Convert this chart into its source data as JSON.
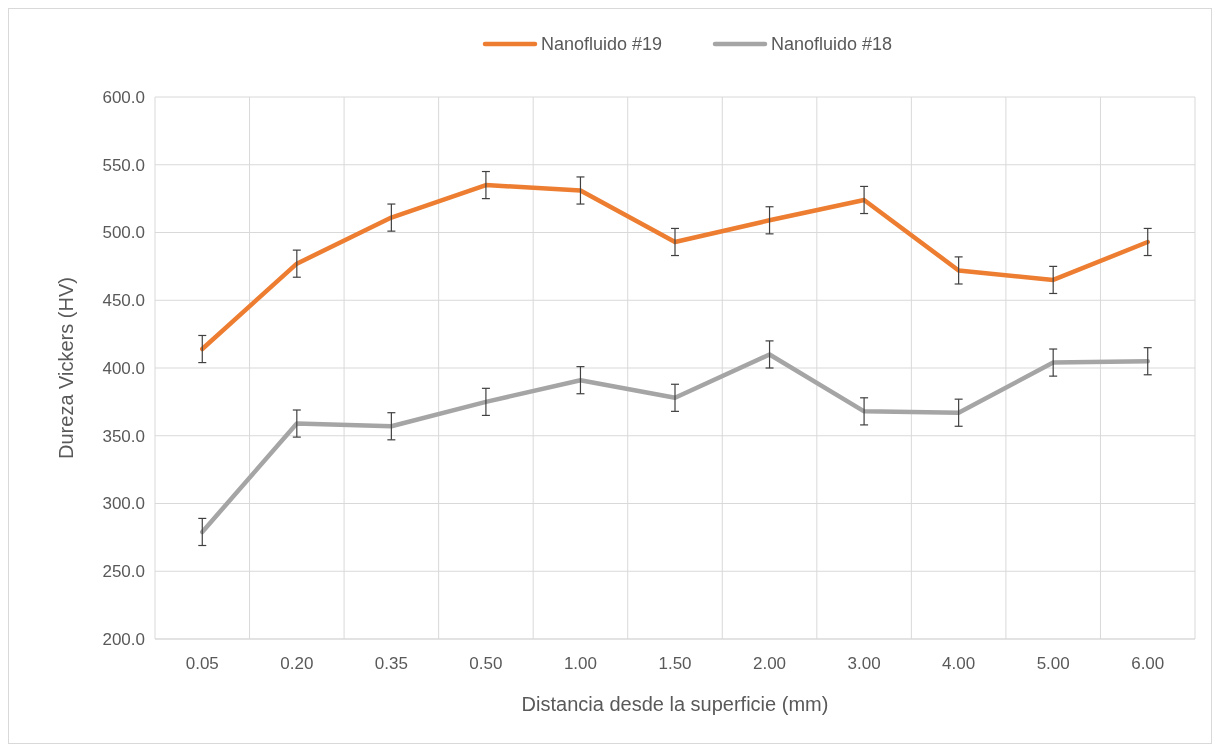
{
  "chart_data": {
    "type": "line",
    "xlabel": "Distancia desde la superficie (mm)",
    "ylabel": "Dureza Vickers (HV)",
    "categories": [
      "0.05",
      "0.20",
      "0.35",
      "0.50",
      "1.00",
      "1.50",
      "2.00",
      "3.00",
      "4.00",
      "5.00",
      "6.00"
    ],
    "series": [
      {
        "name": "Nanofluido #19",
        "color": "#ed7d31",
        "values": [
          414,
          477,
          511,
          535,
          531,
          493,
          509,
          524,
          472,
          465,
          493
        ],
        "errors": [
          10,
          10,
          10,
          10,
          10,
          10,
          10,
          10,
          10,
          10,
          10
        ]
      },
      {
        "name": "Nanofluido #18",
        "color": "#a5a5a5",
        "values": [
          279,
          359,
          357,
          375,
          391,
          378,
          410,
          368,
          367,
          404,
          405
        ],
        "errors": [
          10,
          10,
          10,
          10,
          10,
          10,
          10,
          10,
          10,
          10,
          10
        ]
      }
    ],
    "ylim": [
      200,
      600
    ],
    "yticks": [
      {
        "value": 200,
        "label": "200.0"
      },
      {
        "value": 250,
        "label": "250.0"
      },
      {
        "value": 300,
        "label": "300.0"
      },
      {
        "value": 350,
        "label": "350.0"
      },
      {
        "value": 400,
        "label": "400.0"
      },
      {
        "value": 450,
        "label": "450.0"
      },
      {
        "value": 500,
        "label": "500.0"
      },
      {
        "value": 550,
        "label": "550.0"
      },
      {
        "value": 600,
        "label": "600.0"
      }
    ],
    "grid": true,
    "legend": "top",
    "marker": "none",
    "line_style": "solid"
  }
}
